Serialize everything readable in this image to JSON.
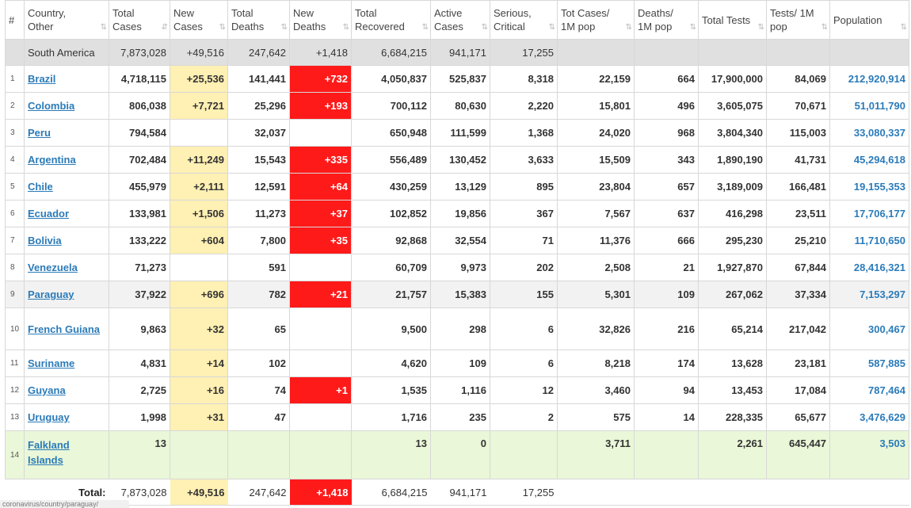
{
  "headers": [
    {
      "key": "idx",
      "label": "#"
    },
    {
      "key": "country",
      "label": "Country, Other"
    },
    {
      "key": "total_cases",
      "label": "Total Cases"
    },
    {
      "key": "new_cases",
      "label": "New Cases"
    },
    {
      "key": "total_deaths",
      "label": "Total Deaths"
    },
    {
      "key": "new_deaths",
      "label": "New Deaths"
    },
    {
      "key": "total_recovered",
      "label": "Total Recovered"
    },
    {
      "key": "active",
      "label": "Active Cases"
    },
    {
      "key": "serious",
      "label": "Serious, Critical"
    },
    {
      "key": "cases_per_m",
      "label": "Tot Cases/ 1M pop"
    },
    {
      "key": "deaths_per_m",
      "label": "Deaths/ 1M pop"
    },
    {
      "key": "tests",
      "label": "Total Tests"
    },
    {
      "key": "tests_per_m",
      "label": "Tests/ 1M pop"
    },
    {
      "key": "population",
      "label": "Population"
    }
  ],
  "sort_icon": "⇅",
  "sort_icon_active": "⇵",
  "continent": {
    "name": "South America",
    "total_cases": "7,873,028",
    "new_cases": "+49,516",
    "total_deaths": "247,642",
    "new_deaths": "+1,418",
    "total_recovered": "6,684,215",
    "active": "941,171",
    "serious": "17,255"
  },
  "rows": [
    {
      "idx": "1",
      "country": "Brazil",
      "total_cases": "4,718,115",
      "new_cases": "+25,536",
      "total_deaths": "141,441",
      "new_deaths": "+732",
      "total_recovered": "4,050,837",
      "active": "525,837",
      "serious": "8,318",
      "cases_per_m": "22,159",
      "deaths_per_m": "664",
      "tests": "17,900,000",
      "tests_per_m": "84,069",
      "population": "212,920,914"
    },
    {
      "idx": "2",
      "country": "Colombia",
      "total_cases": "806,038",
      "new_cases": "+7,721",
      "total_deaths": "25,296",
      "new_deaths": "+193",
      "total_recovered": "700,112",
      "active": "80,630",
      "serious": "2,220",
      "cases_per_m": "15,801",
      "deaths_per_m": "496",
      "tests": "3,605,075",
      "tests_per_m": "70,671",
      "population": "51,011,790"
    },
    {
      "idx": "3",
      "country": "Peru",
      "total_cases": "794,584",
      "new_cases": "",
      "total_deaths": "32,037",
      "new_deaths": "",
      "total_recovered": "650,948",
      "active": "111,599",
      "serious": "1,368",
      "cases_per_m": "24,020",
      "deaths_per_m": "968",
      "tests": "3,804,340",
      "tests_per_m": "115,003",
      "population": "33,080,337"
    },
    {
      "idx": "4",
      "country": "Argentina",
      "total_cases": "702,484",
      "new_cases": "+11,249",
      "total_deaths": "15,543",
      "new_deaths": "+335",
      "total_recovered": "556,489",
      "active": "130,452",
      "serious": "3,633",
      "cases_per_m": "15,509",
      "deaths_per_m": "343",
      "tests": "1,890,190",
      "tests_per_m": "41,731",
      "population": "45,294,618"
    },
    {
      "idx": "5",
      "country": "Chile",
      "total_cases": "455,979",
      "new_cases": "+2,111",
      "total_deaths": "12,591",
      "new_deaths": "+64",
      "total_recovered": "430,259",
      "active": "13,129",
      "serious": "895",
      "cases_per_m": "23,804",
      "deaths_per_m": "657",
      "tests": "3,189,009",
      "tests_per_m": "166,481",
      "population": "19,155,353"
    },
    {
      "idx": "6",
      "country": "Ecuador",
      "total_cases": "133,981",
      "new_cases": "+1,506",
      "total_deaths": "11,273",
      "new_deaths": "+37",
      "total_recovered": "102,852",
      "active": "19,856",
      "serious": "367",
      "cases_per_m": "7,567",
      "deaths_per_m": "637",
      "tests": "416,298",
      "tests_per_m": "23,511",
      "population": "17,706,177"
    },
    {
      "idx": "7",
      "country": "Bolivia",
      "total_cases": "133,222",
      "new_cases": "+604",
      "total_deaths": "7,800",
      "new_deaths": "+35",
      "total_recovered": "92,868",
      "active": "32,554",
      "serious": "71",
      "cases_per_m": "11,376",
      "deaths_per_m": "666",
      "tests": "295,230",
      "tests_per_m": "25,210",
      "population": "11,710,650"
    },
    {
      "idx": "8",
      "country": "Venezuela",
      "total_cases": "71,273",
      "new_cases": "",
      "total_deaths": "591",
      "new_deaths": "",
      "total_recovered": "60,709",
      "active": "9,973",
      "serious": "202",
      "cases_per_m": "2,508",
      "deaths_per_m": "21",
      "tests": "1,927,870",
      "tests_per_m": "67,844",
      "population": "28,416,321"
    },
    {
      "idx": "9",
      "country": "Paraguay",
      "total_cases": "37,922",
      "new_cases": "+696",
      "total_deaths": "782",
      "new_deaths": "+21",
      "total_recovered": "21,757",
      "active": "15,383",
      "serious": "155",
      "cases_per_m": "5,301",
      "deaths_per_m": "109",
      "tests": "267,062",
      "tests_per_m": "37,334",
      "population": "7,153,297",
      "hover": true
    },
    {
      "idx": "10",
      "country": "French Guiana",
      "total_cases": "9,863",
      "new_cases": "+32",
      "total_deaths": "65",
      "new_deaths": "",
      "total_recovered": "9,500",
      "active": "298",
      "serious": "6",
      "cases_per_m": "32,826",
      "deaths_per_m": "216",
      "tests": "65,214",
      "tests_per_m": "217,042",
      "population": "300,467",
      "tall": true
    },
    {
      "idx": "11",
      "country": "Suriname",
      "total_cases": "4,831",
      "new_cases": "+14",
      "total_deaths": "102",
      "new_deaths": "",
      "total_recovered": "4,620",
      "active": "109",
      "serious": "6",
      "cases_per_m": "8,218",
      "deaths_per_m": "174",
      "tests": "13,628",
      "tests_per_m": "23,181",
      "population": "587,885"
    },
    {
      "idx": "12",
      "country": "Guyana",
      "total_cases": "2,725",
      "new_cases": "+16",
      "total_deaths": "74",
      "new_deaths": "+1",
      "total_recovered": "1,535",
      "active": "1,116",
      "serious": "12",
      "cases_per_m": "3,460",
      "deaths_per_m": "94",
      "tests": "13,453",
      "tests_per_m": "17,084",
      "population": "787,464"
    },
    {
      "idx": "13",
      "country": "Uruguay",
      "total_cases": "1,998",
      "new_cases": "+31",
      "total_deaths": "47",
      "new_deaths": "",
      "total_recovered": "1,716",
      "active": "235",
      "serious": "2",
      "cases_per_m": "575",
      "deaths_per_m": "14",
      "tests": "228,335",
      "tests_per_m": "65,677",
      "population": "3,476,629"
    },
    {
      "idx": "14",
      "country": "Falkland Islands",
      "total_cases": "13",
      "new_cases": "",
      "total_deaths": "",
      "new_deaths": "",
      "total_recovered": "13",
      "active": "0",
      "serious": "",
      "cases_per_m": "3,711",
      "deaths_per_m": "",
      "tests": "2,261",
      "tests_per_m": "645,447",
      "population": "3,503",
      "tall": true,
      "green": true
    }
  ],
  "totals": {
    "label": "Total:",
    "total_cases": "7,873,028",
    "new_cases": "+49,516",
    "total_deaths": "247,642",
    "new_deaths": "+1,418",
    "total_recovered": "6,684,215",
    "active": "941,171",
    "serious": "17,255"
  },
  "status_url": "coronavirus/country/paraguay/"
}
